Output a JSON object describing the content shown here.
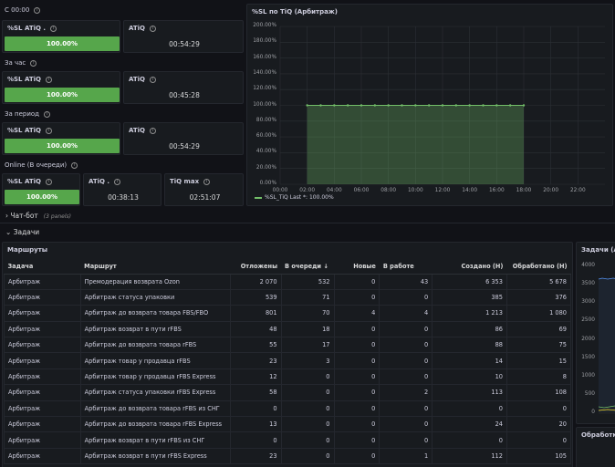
{
  "top": {
    "section1_label": "С 00:00",
    "section2_label": "За час",
    "section3_label": "За период",
    "section4_label": "Online (В очереди)",
    "rows": [
      {
        "sl_title": "%SL ATiQ .",
        "sl_value": "100.00%",
        "atiq_title": "ATiQ",
        "atiq_value": "00:54:29"
      },
      {
        "sl_title": "%SL ATiQ",
        "sl_value": "100.00%",
        "atiq_title": "ATiQ",
        "atiq_value": "00:45:28"
      },
      {
        "sl_title": "%SL ATiQ",
        "sl_value": "100.00%",
        "atiq_title": "ATiQ",
        "atiq_value": "00:54:29"
      }
    ],
    "online": {
      "sl_title": "%SL ATiQ",
      "sl_value": "100.00%",
      "atiq_title": "ATiQ .",
      "atiq_value": "00:38:13",
      "tiq_title": "TiQ max",
      "tiq_value": "02:51:07"
    }
  },
  "chart_panel": {
    "title": "%SL по TiQ (Арбитраж)",
    "legend": "%SL_TiQ  Last *: 100.00%"
  },
  "chart_data": {
    "type": "area",
    "title": "%SL по TiQ (Арбитраж)",
    "x": [
      "02:00",
      "03:00",
      "04:00",
      "05:00",
      "06:00",
      "07:00",
      "08:00",
      "09:00",
      "10:00",
      "11:00",
      "12:00",
      "13:00",
      "14:00",
      "15:00",
      "16:00",
      "17:00",
      "18:00"
    ],
    "series": [
      {
        "name": "%SL_TiQ",
        "values": [
          100,
          100,
          100,
          100,
          100,
          100,
          100,
          100,
          100,
          100,
          100,
          100,
          100,
          100,
          100,
          100,
          100
        ]
      }
    ],
    "x_ticks": [
      "00:00",
      "02:00",
      "04:00",
      "06:00",
      "08:00",
      "10:00",
      "12:00",
      "14:00",
      "16:00",
      "18:00",
      "20:00",
      "22:00"
    ],
    "y_ticks": [
      "200.00%",
      "180.00%",
      "160.00%",
      "140.00%",
      "120.00%",
      "100.00%",
      "80.00%",
      "60.00%",
      "40.00%",
      "20.00%",
      "0.00%"
    ],
    "ylim": [
      0,
      200
    ],
    "color": "#73bf69"
  },
  "collapsed_row": {
    "title": "Чат-бот",
    "note": "(3 panels)"
  },
  "section_row": {
    "title": "Задачи"
  },
  "routes_panel": {
    "title": "Маршруты",
    "columns": [
      "Задача",
      "Маршрут",
      "Отложены",
      "В очереди ↓",
      "Новые",
      "В работе",
      "Создано (Н)",
      "Обработано (Н)"
    ],
    "rows": [
      [
        "Арбитраж",
        "Премодерация возврата Ozon",
        "2 070",
        "532",
        "0",
        "43",
        "6 353",
        "5 678"
      ],
      [
        "Арбитраж",
        "Арбитраж статуса упаковки",
        "539",
        "71",
        "0",
        "0",
        "385",
        "376"
      ],
      [
        "Арбитраж",
        "Арбитраж до возврата товара FBS/FBO",
        "801",
        "70",
        "4",
        "4",
        "1 213",
        "1 080"
      ],
      [
        "Арбитраж",
        "Арбитраж возврат в пути rFBS",
        "48",
        "18",
        "0",
        "0",
        "86",
        "69"
      ],
      [
        "Арбитраж",
        "Арбитраж до возврата товара rFBS",
        "55",
        "17",
        "0",
        "0",
        "88",
        "75"
      ],
      [
        "Арбитраж",
        "Арбитраж товар у продавца rFBS",
        "23",
        "3",
        "0",
        "0",
        "14",
        "15"
      ],
      [
        "Арбитраж",
        "Арбитраж товар у продавца rFBS Express",
        "12",
        "0",
        "0",
        "0",
        "10",
        "8"
      ],
      [
        "Арбитраж",
        "Арбитраж статуса упаковки rFBS Express",
        "58",
        "0",
        "0",
        "2",
        "113",
        "108"
      ],
      [
        "Арбитраж",
        "Арбитраж до возврата товара rFBS из СНГ",
        "0",
        "0",
        "0",
        "0",
        "0",
        "0"
      ],
      [
        "Арбитраж",
        "Арбитраж до возврата товара rFBS Express",
        "13",
        "0",
        "0",
        "0",
        "24",
        "20"
      ],
      [
        "Арбитраж",
        "Арбитраж возврат в пути rFBS из СНГ",
        "0",
        "0",
        "0",
        "0",
        "0",
        "0"
      ],
      [
        "Арбитраж",
        "Арбитраж возврат в пути rFBS Express",
        "23",
        "0",
        "0",
        "1",
        "112",
        "105"
      ]
    ]
  },
  "side_panel": {
    "title": "Задачи (Ар",
    "y_ticks": [
      "4000",
      "3500",
      "3000",
      "2500",
      "2000",
      "1500",
      "1000",
      "500",
      "0"
    ],
    "bottom_title": "Обработка"
  }
}
